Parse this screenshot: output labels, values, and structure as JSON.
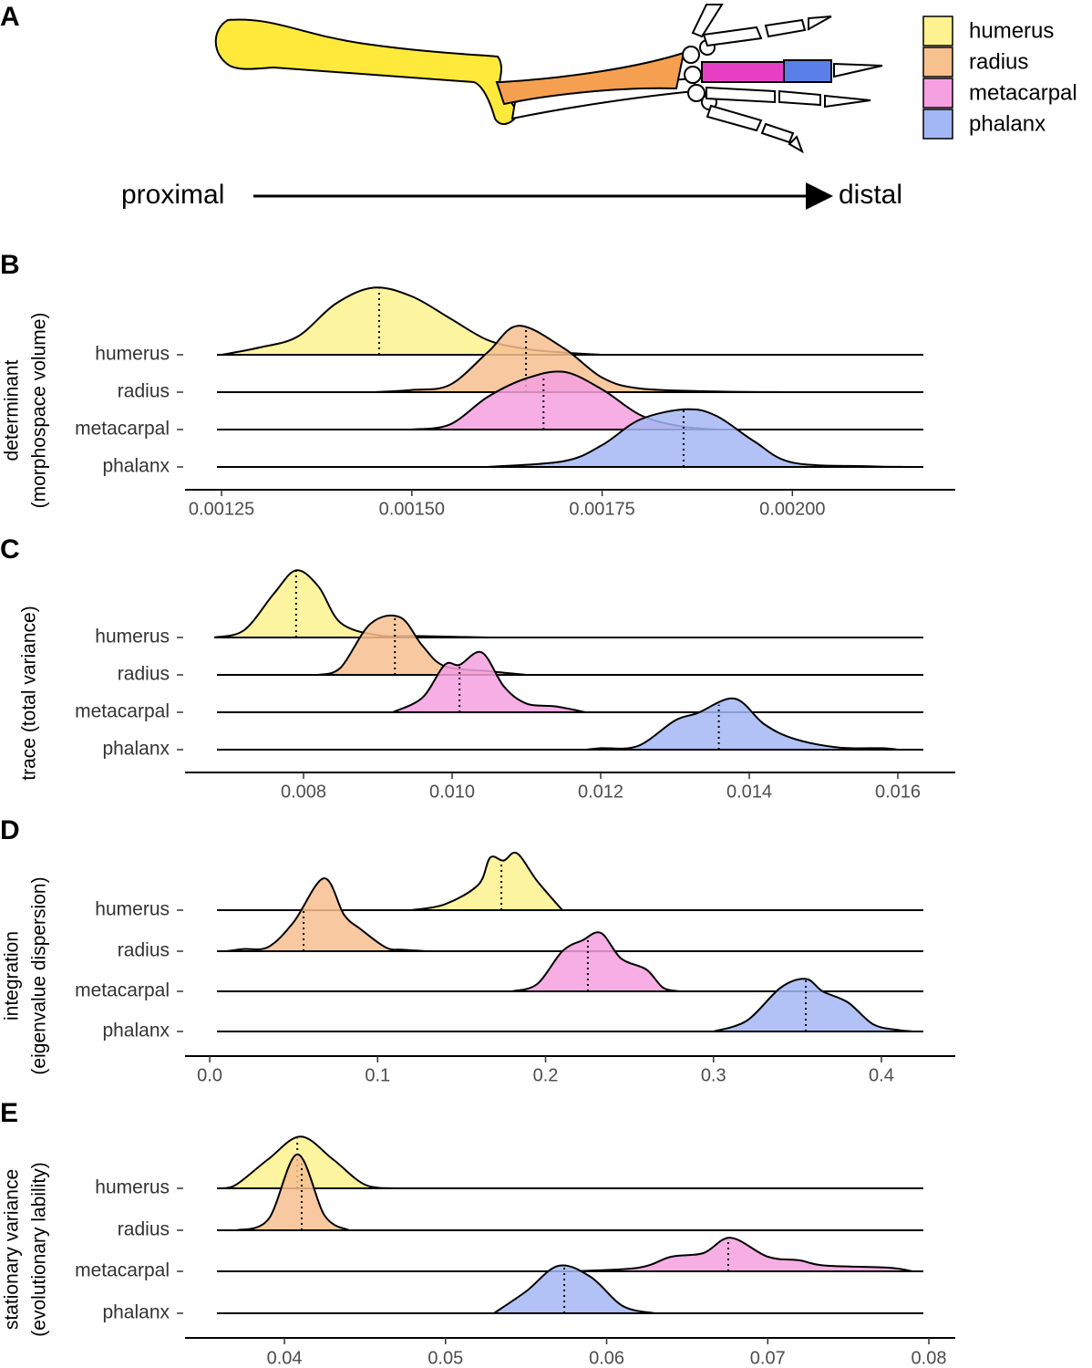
{
  "panel_labels": [
    "A",
    "B",
    "C",
    "D",
    "E"
  ],
  "direction": {
    "start": "proximal",
    "end": "distal"
  },
  "legend": [
    {
      "name": "humerus",
      "color": "#fdf28f"
    },
    {
      "name": "radius",
      "color": "#f7c08f"
    },
    {
      "name": "metacarpal",
      "color": "#f5a0e0"
    },
    {
      "name": "phalanx",
      "color": "#a4b7f5"
    }
  ],
  "chart_data": [
    {
      "type": "ridgeline",
      "ylabel": [
        "determinant",
        "(morphospace volume)"
      ],
      "categories": [
        "humerus",
        "radius",
        "metacarpal",
        "phalanx"
      ],
      "xlim": [
        0.001202,
        0.002214
      ],
      "xticks": [
        0.00125,
        {
          "value": 0.0015,
          "label": "0.00150"
        },
        0.00175,
        {
          "value": 0.002,
          "label": "0.00200"
        }
      ],
      "ridges": [
        {
          "x": [
            0.00125,
            0.0013,
            0.00135,
            0.0014,
            0.00145,
            0.0015,
            0.00155,
            0.0016,
            0.00165,
            0.0017,
            0.00175
          ],
          "density": [
            0,
            0.1,
            0.25,
            0.7,
            0.92,
            0.8,
            0.5,
            0.2,
            0.08,
            0.03,
            0
          ],
          "median": 0.001457
        },
        {
          "x": [
            0.00145,
            0.0015,
            0.00155,
            0.0016,
            0.00164,
            0.0017,
            0.00175,
            0.0018,
            0.0019,
            0.002
          ],
          "density": [
            0,
            0.03,
            0.1,
            0.55,
            0.91,
            0.6,
            0.2,
            0.05,
            0.01,
            0
          ],
          "median": 0.00165
        },
        {
          "x": [
            0.0015,
            0.00155,
            0.0016,
            0.00165,
            0.0017,
            0.00175,
            0.0018,
            0.00185,
            0.0019
          ],
          "density": [
            0,
            0.07,
            0.45,
            0.7,
            0.79,
            0.55,
            0.2,
            0.05,
            0
          ],
          "median": 0.001673
        },
        {
          "x": [
            0.0016,
            0.0017,
            0.00175,
            0.0018,
            0.00186,
            0.0019,
            0.00195,
            0.002,
            0.0021,
            0.00215
          ],
          "density": [
            0,
            0.08,
            0.3,
            0.65,
            0.79,
            0.7,
            0.35,
            0.06,
            0.01,
            0
          ],
          "median": 0.001857
        }
      ]
    },
    {
      "type": "ridgeline",
      "ylabel": [
        "trace (total variance)"
      ],
      "categories": [
        "humerus",
        "radius",
        "metacarpal",
        "phalanx"
      ],
      "xlim": [
        0.006405,
        0.016773
      ],
      "xticks": [
        0.008,
        {
          "value": 0.01,
          "label": "0.010"
        },
        0.012,
        0.014,
        0.016
      ],
      "ridges": [
        {
          "x": [
            0.0068,
            0.0072,
            0.0076,
            0.0079,
            0.0082,
            0.0085,
            0.009,
            0.0095,
            0.0105
          ],
          "density": [
            0,
            0.1,
            0.6,
            0.92,
            0.7,
            0.2,
            0.03,
            0.02,
            0
          ],
          "median": 0.0079
        },
        {
          "x": [
            0.0082,
            0.0085,
            0.0089,
            0.0093,
            0.0096,
            0.0099,
            0.0105,
            0.011
          ],
          "density": [
            0,
            0.1,
            0.7,
            0.79,
            0.4,
            0.12,
            0.05,
            0
          ],
          "median": 0.00923
        },
        {
          "x": [
            0.0092,
            0.0096,
            0.0099,
            0.0101,
            0.0104,
            0.0107,
            0.011,
            0.0114,
            0.0118
          ],
          "density": [
            0,
            0.2,
            0.65,
            0.65,
            0.82,
            0.35,
            0.12,
            0.08,
            0
          ],
          "median": 0.0101
        },
        {
          "x": [
            0.0118,
            0.012,
            0.0125,
            0.013,
            0.0133,
            0.0138,
            0.0142,
            0.0146,
            0.0152,
            0.0158,
            0.016
          ],
          "density": [
            0,
            0.02,
            0.05,
            0.4,
            0.5,
            0.7,
            0.35,
            0.15,
            0.03,
            0.02,
            0
          ],
          "median": 0.01359
        }
      ]
    },
    {
      "type": "ridgeline",
      "ylabel": [
        "integration",
        "(eigenvalue dispersion)"
      ],
      "categories": [
        "humerus",
        "radius",
        "metacarpal",
        "phalanx"
      ],
      "xlim": [
        -0.0147,
        0.444
      ],
      "xticks": [
        {
          "value": 0,
          "label": "0.0"
        },
        0.1,
        0.2,
        0.3,
        0.4
      ],
      "ridges": [
        {
          "x": [
            0.12,
            0.14,
            0.16,
            0.167,
            0.175,
            0.183,
            0.195,
            0.21
          ],
          "density": [
            0,
            0.08,
            0.35,
            0.72,
            0.68,
            0.78,
            0.4,
            0
          ],
          "median": 0.1737
        },
        {
          "x": [
            0.01,
            0.02,
            0.035,
            0.05,
            0.068,
            0.08,
            0.09,
            0.105,
            0.115,
            0.13
          ],
          "density": [
            0,
            0.03,
            0.06,
            0.4,
            1.0,
            0.5,
            0.3,
            0.05,
            0.02,
            0
          ],
          "median": 0.0559
        },
        {
          "x": [
            0.18,
            0.195,
            0.21,
            0.222,
            0.233,
            0.245,
            0.26,
            0.27,
            0.28
          ],
          "density": [
            0,
            0.1,
            0.55,
            0.7,
            0.8,
            0.45,
            0.3,
            0.05,
            0
          ],
          "median": 0.2252
        },
        {
          "x": [
            0.3,
            0.32,
            0.34,
            0.355,
            0.365,
            0.38,
            0.395,
            0.41,
            0.42
          ],
          "density": [
            0,
            0.15,
            0.6,
            0.72,
            0.55,
            0.4,
            0.1,
            0.02,
            0
          ],
          "median": 0.355
        }
      ]
    },
    {
      "type": "ridgeline",
      "ylabel": [
        "stationary variance",
        "(evolutionary lability)"
      ],
      "categories": [
        "humerus",
        "radius",
        "metacarpal",
        "phalanx"
      ],
      "xlim": [
        0.03383,
        0.08164
      ],
      "xticks": [
        0.04,
        0.05,
        0.06,
        0.07,
        0.08
      ],
      "ridges": [
        {
          "x": [
            0.036,
            0.037,
            0.039,
            0.041,
            0.043,
            0.045,
            0.047
          ],
          "density": [
            0,
            0.05,
            0.4,
            0.71,
            0.4,
            0.05,
            0
          ],
          "median": 0.0408
        },
        {
          "x": [
            0.037,
            0.039,
            0.0408,
            0.0425,
            0.044
          ],
          "density": [
            0,
            0.15,
            1.04,
            0.2,
            0
          ],
          "median": 0.04107
        },
        {
          "x": [
            0.058,
            0.062,
            0.064,
            0.066,
            0.0677,
            0.07,
            0.072,
            0.0735,
            0.0775,
            0.079
          ],
          "density": [
            0,
            0.05,
            0.2,
            0.25,
            0.46,
            0.2,
            0.15,
            0.08,
            0.05,
            0
          ],
          "median": 0.06755
        },
        {
          "x": [
            0.053,
            0.055,
            0.057,
            0.059,
            0.061,
            0.063
          ],
          "density": [
            0,
            0.3,
            0.65,
            0.5,
            0.1,
            0
          ],
          "median": 0.05737
        }
      ]
    }
  ]
}
